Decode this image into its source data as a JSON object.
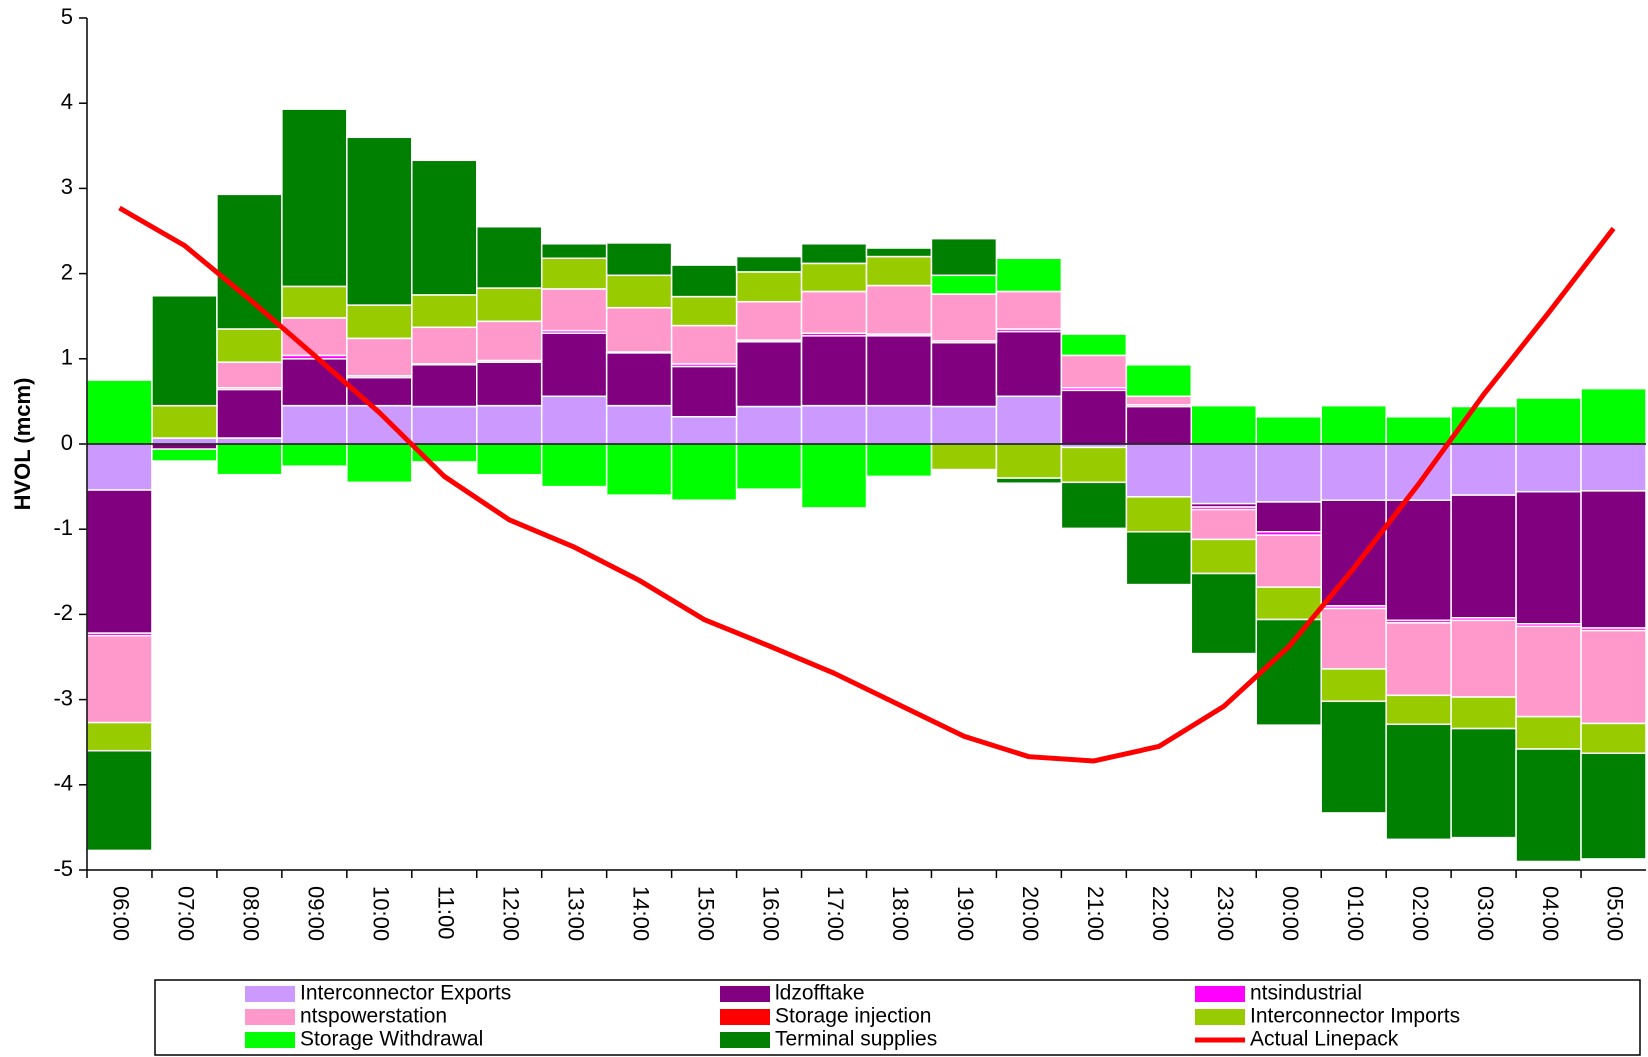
{
  "chart_data": {
    "type": "bar",
    "stacked": true,
    "ylabel": "HVOL (mcm)",
    "categories": [
      "06:00",
      "07:00",
      "08:00",
      "09:00",
      "10:00",
      "11:00",
      "12:00",
      "13:00",
      "14:00",
      "15:00",
      "16:00",
      "17:00",
      "18:00",
      "19:00",
      "20:00",
      "21:00",
      "22:00",
      "23:00",
      "00:00",
      "01:00",
      "02:00",
      "03:00",
      "04:00",
      "05:00"
    ],
    "ylim": [
      -5,
      5
    ],
    "yticks": [
      -5,
      -4,
      -3,
      -2,
      -1,
      0,
      1,
      2,
      3,
      4,
      5
    ],
    "series": [
      {
        "name": "Interconnector Exports",
        "color": "#cc99ff",
        "values": [
          -0.54,
          0.07,
          0.07,
          0.45,
          0.45,
          0.44,
          0.45,
          0.56,
          0.45,
          0.32,
          0.44,
          0.45,
          0.45,
          0.44,
          0.56,
          -0.04,
          -0.62,
          -0.7,
          -0.68,
          -0.66,
          -0.66,
          -0.6,
          -0.56,
          -0.55
        ]
      },
      {
        "name": "ldzofftake",
        "color": "#800080",
        "values": [
          -1.68,
          -0.06,
          0.57,
          0.55,
          0.33,
          0.49,
          0.51,
          0.74,
          0.62,
          0.59,
          0.76,
          0.82,
          0.82,
          0.75,
          0.76,
          0.63,
          0.44,
          -0.04,
          -0.35,
          -1.24,
          -1.41,
          -1.44,
          -1.55,
          -1.61
        ]
      },
      {
        "name": "ntsindustrial",
        "color": "#ff00ff",
        "values": [
          -0.03,
          0,
          0.02,
          0.04,
          0.02,
          0.01,
          0.02,
          0.03,
          0.01,
          0.03,
          0.02,
          0.03,
          0.02,
          0.02,
          0.03,
          0.03,
          0.02,
          -0.03,
          -0.04,
          -0.03,
          -0.03,
          -0.03,
          -0.03,
          -0.03
        ]
      },
      {
        "name": "ntspowerstation",
        "color": "#ff99cc",
        "values": [
          -1.02,
          0,
          0.3,
          0.44,
          0.44,
          0.43,
          0.46,
          0.49,
          0.52,
          0.45,
          0.45,
          0.49,
          0.57,
          0.55,
          0.44,
          0.38,
          0.1,
          -0.35,
          -0.61,
          -0.71,
          -0.85,
          -0.9,
          -1.06,
          -1.09
        ]
      },
      {
        "name": "Storage injection",
        "color": "#ff0000",
        "values": [
          0,
          0,
          0,
          0,
          0,
          0,
          0,
          0,
          0,
          0,
          0,
          0,
          0,
          0,
          0,
          0,
          0,
          0,
          0,
          0,
          0,
          0,
          0,
          0
        ]
      },
      {
        "name": "Interconnector Imports",
        "color": "#99cc00",
        "values": [
          -0.33,
          0.38,
          0.39,
          0.37,
          0.39,
          0.38,
          0.39,
          0.36,
          0.38,
          0.34,
          0.35,
          0.33,
          0.34,
          -0.3,
          -0.4,
          -0.41,
          -0.41,
          -0.4,
          -0.38,
          -0.38,
          -0.34,
          -0.37,
          -0.38,
          -0.35
        ]
      },
      {
        "name": "Storage Withdrawal",
        "color": "#00ff00",
        "values": [
          0.75,
          -0.14,
          -0.36,
          -0.26,
          -0.45,
          -0.21,
          -0.36,
          -0.5,
          -0.6,
          -0.66,
          -0.53,
          -0.75,
          -0.38,
          0.22,
          0.39,
          0.25,
          0.37,
          0.45,
          0.32,
          0.45,
          0.32,
          0.44,
          0.54,
          0.65
        ]
      },
      {
        "name": "Terminal supplies",
        "color": "#008000",
        "values": [
          -1.17,
          1.29,
          1.58,
          2.08,
          1.97,
          1.58,
          0.72,
          0.17,
          0.38,
          0.37,
          0.18,
          0.23,
          0.1,
          0.43,
          -0.06,
          -0.54,
          -0.62,
          -0.94,
          -1.24,
          -1.31,
          -1.35,
          -1.28,
          -1.32,
          -1.24
        ]
      }
    ],
    "line": {
      "name": "Actual Linepack",
      "color": "#ff0000",
      "values": [
        2.77,
        2.33,
        1.7,
        1.04,
        0.37,
        -0.38,
        -0.89,
        -1.21,
        -1.6,
        -2.06,
        -2.37,
        -2.69,
        -3.06,
        -3.43,
        -3.67,
        -3.72,
        -3.55,
        -3.08,
        -2.38,
        -1.46,
        -0.47,
        0.58,
        1.54,
        2.53
      ]
    }
  }
}
